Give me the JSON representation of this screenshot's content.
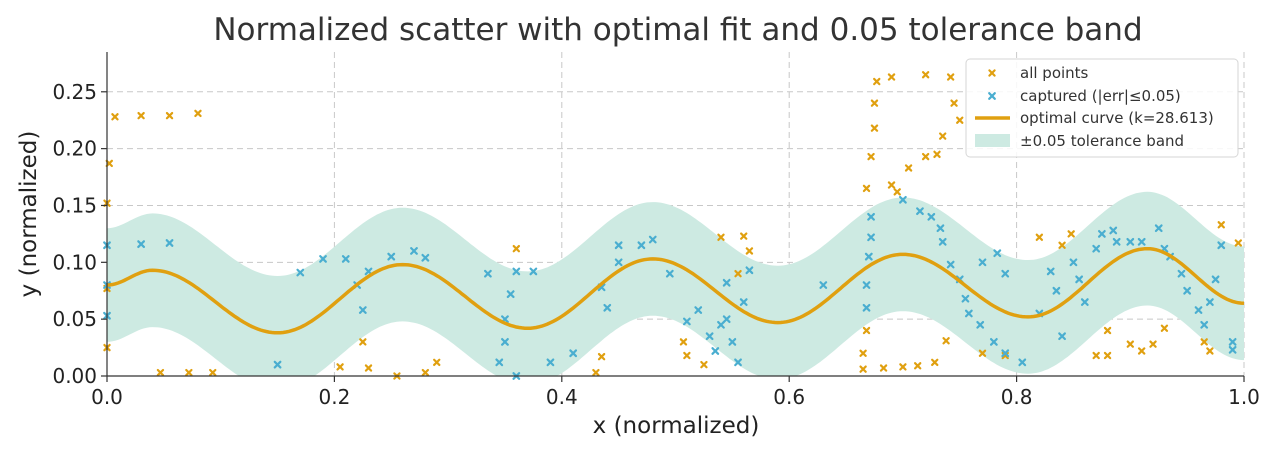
{
  "chart_data": {
    "type": "scatter",
    "title": "Normalized scatter with optimal fit and 0.05 tolerance band",
    "xlabel": "x (normalized)",
    "ylabel": "y (normalized)",
    "xlim": [
      0.0,
      1.0
    ],
    "ylim": [
      0.0,
      0.285
    ],
    "x_ticks": [
      "0.0",
      "0.2",
      "0.4",
      "0.6",
      "0.8",
      "1.0"
    ],
    "y_ticks": [
      "0.00",
      "0.05",
      "0.10",
      "0.15",
      "0.20",
      "0.25"
    ],
    "grid": true,
    "legend_position": "top-right",
    "colors": {
      "all_points": "#e0a010",
      "captured": "#4aaed0",
      "curve": "#e0a010",
      "band": "#cdeae2"
    },
    "curve": {
      "name": "optimal curve (k=28.613)",
      "k": 28.613,
      "x": [
        0.0,
        0.04,
        0.15,
        0.26,
        0.37,
        0.48,
        0.59,
        0.7,
        0.81,
        0.915,
        1.0
      ],
      "y": [
        0.08,
        0.093,
        0.038,
        0.098,
        0.042,
        0.103,
        0.047,
        0.107,
        0.052,
        0.112,
        0.064
      ]
    },
    "band": {
      "name": "±0.05 tolerance band",
      "tolerance": 0.05
    },
    "legend": [
      {
        "key": "all_points",
        "label": "all points"
      },
      {
        "key": "captured",
        "label": "captured (|err|≤0.05)"
      },
      {
        "key": "curve",
        "label": "optimal curve (k=28.613)"
      },
      {
        "key": "band",
        "label": "±0.05 tolerance band"
      }
    ],
    "series": [
      {
        "name": "all points",
        "points": [
          [
            0.0,
            0.025
          ],
          [
            0.0,
            0.077
          ],
          [
            0.0,
            0.152
          ],
          [
            0.002,
            0.187
          ],
          [
            0.007,
            0.228
          ],
          [
            0.03,
            0.229
          ],
          [
            0.055,
            0.229
          ],
          [
            0.08,
            0.231
          ],
          [
            0.047,
            0.003
          ],
          [
            0.072,
            0.003
          ],
          [
            0.093,
            0.003
          ],
          [
            0.205,
            0.008
          ],
          [
            0.23,
            0.007
          ],
          [
            0.225,
            0.03
          ],
          [
            0.255,
            0.0
          ],
          [
            0.28,
            0.003
          ],
          [
            0.29,
            0.012
          ],
          [
            0.36,
            0.112
          ],
          [
            0.43,
            0.003
          ],
          [
            0.435,
            0.017
          ],
          [
            0.507,
            0.03
          ],
          [
            0.51,
            0.018
          ],
          [
            0.54,
            0.122
          ],
          [
            0.56,
            0.123
          ],
          [
            0.565,
            0.11
          ],
          [
            0.555,
            0.09
          ],
          [
            0.525,
            0.01
          ],
          [
            0.665,
            0.006
          ],
          [
            0.665,
            0.02
          ],
          [
            0.668,
            0.04
          ],
          [
            0.668,
            0.165
          ],
          [
            0.672,
            0.193
          ],
          [
            0.675,
            0.218
          ],
          [
            0.675,
            0.24
          ],
          [
            0.677,
            0.259
          ],
          [
            0.683,
            0.007
          ],
          [
            0.69,
            0.263
          ],
          [
            0.69,
            0.168
          ],
          [
            0.695,
            0.162
          ],
          [
            0.7,
            0.008
          ],
          [
            0.705,
            0.183
          ],
          [
            0.713,
            0.009
          ],
          [
            0.72,
            0.265
          ],
          [
            0.72,
            0.193
          ],
          [
            0.73,
            0.195
          ],
          [
            0.735,
            0.211
          ],
          [
            0.738,
            0.031
          ],
          [
            0.742,
            0.263
          ],
          [
            0.745,
            0.24
          ],
          [
            0.75,
            0.225
          ],
          [
            0.728,
            0.012
          ],
          [
            0.77,
            0.02
          ],
          [
            0.79,
            0.018
          ],
          [
            0.82,
            0.122
          ],
          [
            0.84,
            0.115
          ],
          [
            0.848,
            0.125
          ],
          [
            0.87,
            0.018
          ],
          [
            0.88,
            0.018
          ],
          [
            0.88,
            0.04
          ],
          [
            0.9,
            0.028
          ],
          [
            0.91,
            0.022
          ],
          [
            0.92,
            0.028
          ],
          [
            0.93,
            0.042
          ],
          [
            0.965,
            0.03
          ],
          [
            0.97,
            0.022
          ],
          [
            0.98,
            0.133
          ],
          [
            0.995,
            0.117
          ]
        ]
      },
      {
        "name": "captured (|err|≤0.05)",
        "points": [
          [
            0.0,
            0.115
          ],
          [
            0.0,
            0.08
          ],
          [
            0.0,
            0.053
          ],
          [
            0.03,
            0.116
          ],
          [
            0.055,
            0.117
          ],
          [
            0.15,
            0.01
          ],
          [
            0.17,
            0.091
          ],
          [
            0.19,
            0.103
          ],
          [
            0.21,
            0.103
          ],
          [
            0.22,
            0.08
          ],
          [
            0.225,
            0.058
          ],
          [
            0.23,
            0.092
          ],
          [
            0.25,
            0.105
          ],
          [
            0.27,
            0.11
          ],
          [
            0.28,
            0.104
          ],
          [
            0.335,
            0.09
          ],
          [
            0.345,
            0.012
          ],
          [
            0.35,
            0.03
          ],
          [
            0.35,
            0.05
          ],
          [
            0.355,
            0.072
          ],
          [
            0.36,
            0.092
          ],
          [
            0.375,
            0.092
          ],
          [
            0.36,
            0.0
          ],
          [
            0.39,
            0.012
          ],
          [
            0.41,
            0.02
          ],
          [
            0.435,
            0.078
          ],
          [
            0.44,
            0.06
          ],
          [
            0.45,
            0.1
          ],
          [
            0.45,
            0.115
          ],
          [
            0.47,
            0.115
          ],
          [
            0.48,
            0.12
          ],
          [
            0.495,
            0.09
          ],
          [
            0.51,
            0.048
          ],
          [
            0.52,
            0.058
          ],
          [
            0.53,
            0.035
          ],
          [
            0.535,
            0.022
          ],
          [
            0.54,
            0.045
          ],
          [
            0.545,
            0.05
          ],
          [
            0.55,
            0.03
          ],
          [
            0.555,
            0.012
          ],
          [
            0.56,
            0.065
          ],
          [
            0.565,
            0.093
          ],
          [
            0.545,
            0.082
          ],
          [
            0.63,
            0.08
          ],
          [
            0.668,
            0.06
          ],
          [
            0.668,
            0.08
          ],
          [
            0.67,
            0.105
          ],
          [
            0.672,
            0.122
          ],
          [
            0.672,
            0.14
          ],
          [
            0.7,
            0.155
          ],
          [
            0.715,
            0.145
          ],
          [
            0.725,
            0.14
          ],
          [
            0.733,
            0.13
          ],
          [
            0.735,
            0.118
          ],
          [
            0.742,
            0.098
          ],
          [
            0.75,
            0.085
          ],
          [
            0.755,
            0.068
          ],
          [
            0.758,
            0.055
          ],
          [
            0.768,
            0.045
          ],
          [
            0.78,
            0.03
          ],
          [
            0.77,
            0.1
          ],
          [
            0.783,
            0.108
          ],
          [
            0.79,
            0.02
          ],
          [
            0.79,
            0.09
          ],
          [
            0.805,
            0.012
          ],
          [
            0.82,
            0.055
          ],
          [
            0.83,
            0.092
          ],
          [
            0.835,
            0.075
          ],
          [
            0.84,
            0.035
          ],
          [
            0.85,
            0.1
          ],
          [
            0.855,
            0.085
          ],
          [
            0.86,
            0.065
          ],
          [
            0.87,
            0.112
          ],
          [
            0.875,
            0.125
          ],
          [
            0.885,
            0.128
          ],
          [
            0.888,
            0.118
          ],
          [
            0.9,
            0.118
          ],
          [
            0.91,
            0.118
          ],
          [
            0.925,
            0.13
          ],
          [
            0.93,
            0.112
          ],
          [
            0.935,
            0.105
          ],
          [
            0.945,
            0.09
          ],
          [
            0.95,
            0.075
          ],
          [
            0.96,
            0.058
          ],
          [
            0.965,
            0.045
          ],
          [
            0.97,
            0.065
          ],
          [
            0.975,
            0.085
          ],
          [
            0.98,
            0.115
          ],
          [
            0.99,
            0.03
          ],
          [
            0.99,
            0.023
          ]
        ]
      }
    ]
  }
}
